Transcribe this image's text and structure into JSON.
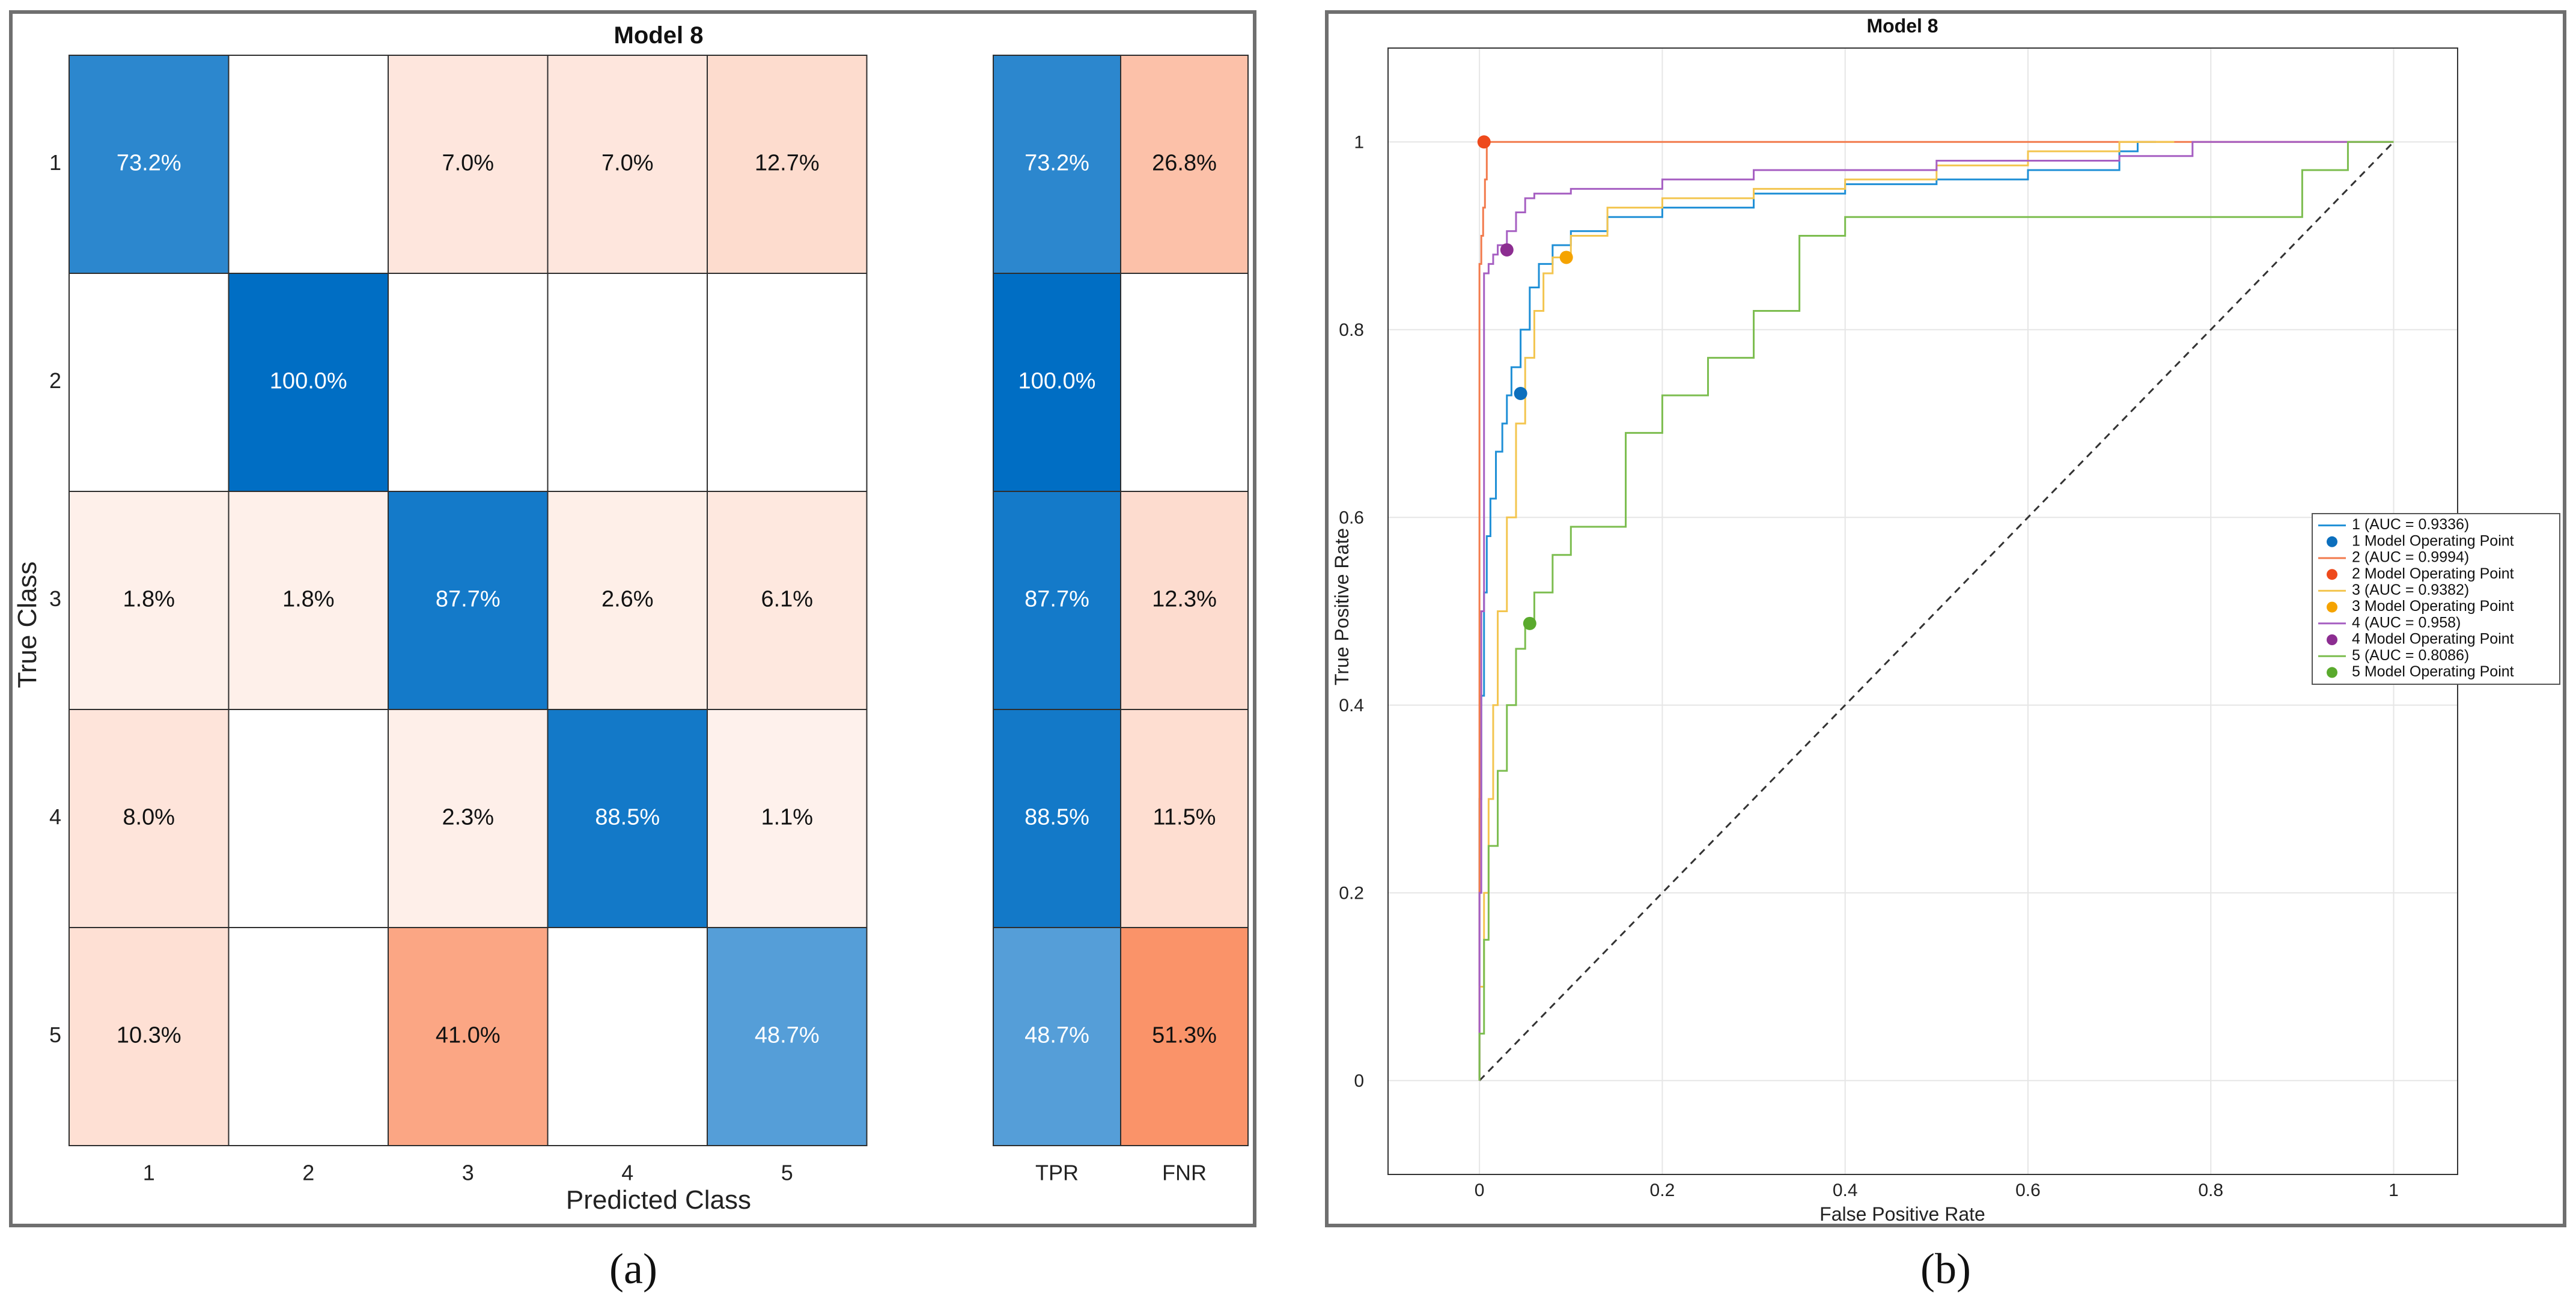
{
  "figure": {
    "label_a": "(a)",
    "label_b": "(b)"
  },
  "confusion": {
    "title": "Model 8",
    "xlabel": "Predicted Class",
    "ylabel": "True Class",
    "classes": [
      "1",
      "2",
      "3",
      "4",
      "5"
    ],
    "matrix": [
      [
        73.2,
        null,
        7.0,
        7.0,
        12.7
      ],
      [
        null,
        100.0,
        null,
        null,
        null
      ],
      [
        1.8,
        1.8,
        87.7,
        2.6,
        6.1
      ],
      [
        8.0,
        null,
        2.3,
        88.5,
        1.1
      ],
      [
        10.3,
        null,
        41.0,
        null,
        48.7
      ]
    ],
    "summary_labels": [
      "TPR",
      "FNR"
    ],
    "tpr": [
      73.2,
      100.0,
      87.7,
      88.5,
      48.7
    ],
    "fnr": [
      26.8,
      null,
      12.3,
      11.5,
      51.3
    ]
  },
  "chart_data": {
    "type": "line",
    "title": "Model 8",
    "xlabel": "False Positive Rate",
    "ylabel": "True Positive Rate",
    "xlim": [
      -0.1,
      1.07
    ],
    "ylim": [
      -0.1,
      1.1
    ],
    "xticks": [
      0,
      0.2,
      0.4,
      0.6,
      0.8,
      1
    ],
    "yticks": [
      0,
      0.2,
      0.4,
      0.6,
      0.8,
      1
    ],
    "xtick_labels": [
      "0",
      "0.2",
      "0.4",
      "0.6",
      "0.8",
      "1"
    ],
    "ytick_labels": [
      "0",
      "0.2",
      "0.4",
      "0.6",
      "0.8",
      "1"
    ],
    "grid": true,
    "legend_position": "right",
    "series": [
      {
        "name": "1 (AUC = 0.9336)",
        "op_name": "1 Model Operating Point",
        "color": "#1f8fd6",
        "op_color": "#0c6fbd",
        "operating_point": [
          0.045,
          0.732
        ],
        "x": [
          0,
          0.002,
          0.005,
          0.008,
          0.012,
          0.018,
          0.025,
          0.03,
          0.035,
          0.045,
          0.055,
          0.065,
          0.08,
          0.1,
          0.14,
          0.2,
          0.3,
          0.4,
          0.5,
          0.6,
          0.7,
          0.72,
          0.74
        ],
        "y": [
          0,
          0.3,
          0.41,
          0.52,
          0.58,
          0.62,
          0.67,
          0.7,
          0.73,
          0.76,
          0.8,
          0.845,
          0.87,
          0.89,
          0.905,
          0.92,
          0.93,
          0.945,
          0.955,
          0.96,
          0.97,
          0.99,
          1.0
        ]
      },
      {
        "name": "2 (AUC = 0.9994)",
        "op_name": "2 Model Operating Point",
        "color": "#f27a4c",
        "op_color": "#ee4a1c",
        "operating_point": [
          0.005,
          1.0
        ],
        "x": [
          0,
          0.0,
          0.002,
          0.004,
          0.006,
          0.008,
          0.01,
          1.0
        ],
        "y": [
          0,
          0.12,
          0.87,
          0.9,
          0.93,
          0.96,
          1.0,
          1.0
        ]
      },
      {
        "name": "3 (AUC = 0.9382)",
        "op_name": "3 Model Operating Point",
        "color": "#f3c54f",
        "op_color": "#f5a300",
        "operating_point": [
          0.095,
          0.877
        ],
        "x": [
          0,
          0.005,
          0.01,
          0.015,
          0.02,
          0.03,
          0.04,
          0.05,
          0.06,
          0.07,
          0.08,
          0.1,
          0.14,
          0.2,
          0.3,
          0.4,
          0.5,
          0.6,
          0.7,
          0.76
        ],
        "y": [
          0,
          0.1,
          0.2,
          0.3,
          0.4,
          0.5,
          0.6,
          0.7,
          0.77,
          0.82,
          0.86,
          0.877,
          0.9,
          0.93,
          0.94,
          0.95,
          0.96,
          0.975,
          0.99,
          1.0
        ]
      },
      {
        "name": "4 (AUC = 0.958)",
        "op_name": "4 Model Operating Point",
        "color": "#a65fc2",
        "op_color": "#8c2d91",
        "operating_point": [
          0.03,
          0.885
        ],
        "x": [
          0,
          0.002,
          0.005,
          0.01,
          0.015,
          0.02,
          0.03,
          0.04,
          0.05,
          0.06,
          0.1,
          0.2,
          0.3,
          0.5,
          0.7,
          0.78,
          0.85,
          1.0
        ],
        "y": [
          0,
          0.2,
          0.5,
          0.86,
          0.87,
          0.88,
          0.89,
          0.905,
          0.925,
          0.94,
          0.945,
          0.95,
          0.96,
          0.97,
          0.98,
          0.985,
          1.0,
          1.0
        ]
      },
      {
        "name": "5 (AUC = 0.8086)",
        "op_name": "5 Model Operating Point",
        "color": "#7cbd4f",
        "op_color": "#5aaa2d",
        "operating_point": [
          0.055,
          0.487
        ],
        "x": [
          0,
          0.005,
          0.01,
          0.02,
          0.03,
          0.04,
          0.05,
          0.06,
          0.08,
          0.1,
          0.16,
          0.2,
          0.25,
          0.3,
          0.35,
          0.4,
          0.5,
          0.7,
          0.9,
          0.95,
          1.0
        ],
        "y": [
          0,
          0.05,
          0.15,
          0.25,
          0.33,
          0.4,
          0.46,
          0.49,
          0.52,
          0.56,
          0.59,
          0.69,
          0.73,
          0.77,
          0.82,
          0.9,
          0.92,
          0.92,
          0.92,
          0.97,
          1.0
        ]
      }
    ],
    "reference_line": {
      "x": [
        0,
        1
      ],
      "y": [
        0,
        1
      ],
      "style": "dashed",
      "color": "#333333"
    }
  }
}
